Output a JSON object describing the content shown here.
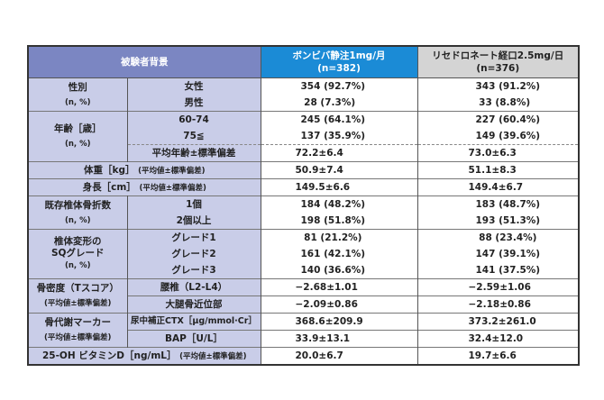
{
  "header": {
    "background": "被験者背景",
    "col_a": "ボンビバ静注1mg/月",
    "col_a_n": "(n=382)",
    "col_b": "リセドロネート経口2.5mg/日",
    "col_b_n": "(n=376)"
  },
  "colors": {
    "header_left": "#7b86c2",
    "header_a": "#1b8bd6",
    "header_b": "#d4d4d4",
    "label_bg": "#c9cde8"
  },
  "sex": {
    "label": "性別",
    "unit": "(n, %)",
    "rows": [
      {
        "sub": "女性",
        "a": "354 (92.7%)",
        "b": "343 (91.2%)"
      },
      {
        "sub": "男性",
        "a": " 28 (7.3%)",
        "b": " 33 (8.8%)"
      }
    ]
  },
  "age": {
    "label": "年齢［歳］",
    "unit": "(n, %)",
    "rows": [
      {
        "sub": "60-74",
        "a": "245 (64.1%)",
        "b": "227 (60.4%)"
      },
      {
        "sub": "75≦",
        "a": "137 (35.9%)",
        "b": "149 (39.6%)"
      }
    ],
    "mean_label": "平均年齢±標準偏差",
    "mean_a": "72.2±6.4",
    "mean_b": "73.0±6.3"
  },
  "weight": {
    "label": "体重［kg］",
    "note": "(平均値±標準偏差)",
    "a": "50.9±7.4",
    "b": "51.1±8.3"
  },
  "height": {
    "label": "身長［cm］",
    "note": "(平均値±標準偏差)",
    "a": "149.5±6.6",
    "b": "149.4±6.7"
  },
  "fracture": {
    "label": "既存椎体骨折数",
    "unit": "(n, %)",
    "rows": [
      {
        "sub": "1個",
        "a": "184 (48.2%)",
        "b": "183 (48.7%)"
      },
      {
        "sub": "2個以上",
        "a": "198 (51.8%)",
        "b": "193 (51.3%)"
      }
    ]
  },
  "sq": {
    "label1": "椎体変形の",
    "label2": "SQグレード",
    "unit": "(n, %)",
    "rows": [
      {
        "sub": "グレード1",
        "a": " 81 (21.2%)",
        "b": " 88 (23.4%)"
      },
      {
        "sub": "グレード2",
        "a": "161 (42.1%)",
        "b": "147 (39.1%)"
      },
      {
        "sub": "グレード3",
        "a": "140 (36.6%)",
        "b": "141 (37.5%)"
      }
    ]
  },
  "bmd": {
    "label": "骨密度（Tスコア）",
    "note": "(平均値±標準偏差)",
    "rows": [
      {
        "sub": "腰椎（L2-L4）",
        "a": "−2.68±1.01",
        "b": "−2.59±1.06"
      },
      {
        "sub": "大腿骨近位部",
        "a": "−2.09±0.86",
        "b": "−2.18±0.86"
      }
    ]
  },
  "marker": {
    "label": "骨代謝マーカー",
    "note": "(平均値±標準偏差)",
    "rows": [
      {
        "sub": "尿中補正CTX［μg/mmol·Cr］",
        "a": "368.6±209.9",
        "b": "373.2±261.0"
      },
      {
        "sub": "BAP［U/L］",
        "a": "33.9±13.1",
        "b": "32.4±12.0"
      }
    ]
  },
  "vitd": {
    "label": "25-OH ビタミンD［ng/mL］",
    "note": "(平均値±標準偏差)",
    "a": "20.0±6.7",
    "b": "19.7±6.6"
  }
}
